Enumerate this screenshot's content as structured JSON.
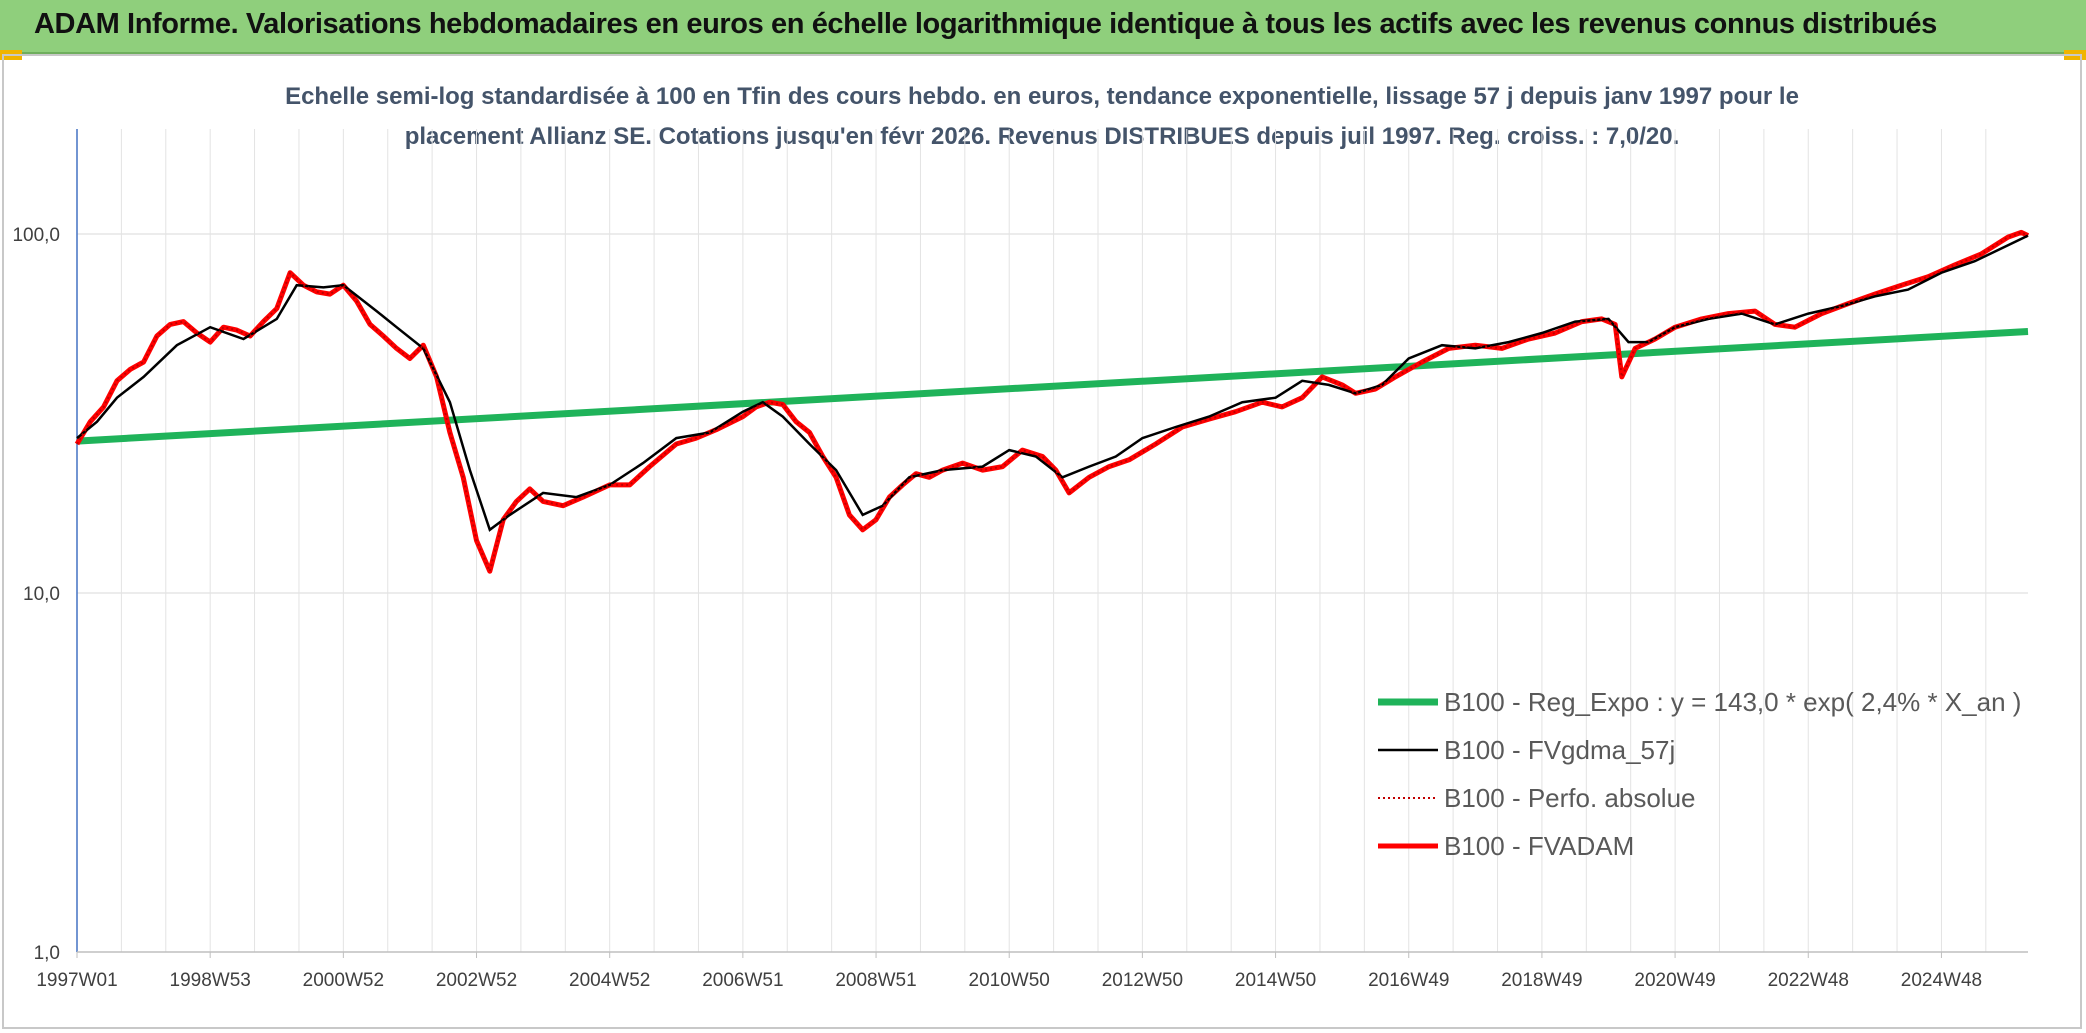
{
  "header": {
    "title": "ADAM Informe. Valorisations hebdomadaires en euros en échelle logarithmique identique à tous les actifs avec les revenus connus distribués"
  },
  "colors": {
    "header_bg": "#8fcf7c",
    "reg": "#1fb35a",
    "mma": "#000000",
    "perfo": "#c00000",
    "fvadam": "#ff0000",
    "subtitle": "#44546a"
  },
  "chart_data": {
    "type": "line",
    "subtitle_lines": [
      "Echelle semi-log standardisée à 100 en Tfin des cours hebdo. en euros, tendance exponentielle, lissage 57 j depuis janv 1997 pour le",
      "placement Allianz SE. Cotations jusqu'en févr 2026. Revenus DISTRIBUES depuis juil 1997. Reg. croiss. : 7,0/20."
    ],
    "y_scale": "log",
    "ylim": [
      1,
      200
    ],
    "y_ticks": [
      "1,0",
      "10,0",
      "100,0"
    ],
    "y_tick_values": [
      1,
      10,
      100
    ],
    "xlim": [
      1997.0,
      2026.3
    ],
    "x_ticks": [
      "1997W01",
      "1998W53",
      "2000W52",
      "2002W52",
      "2004W52",
      "2006W51",
      "2008W51",
      "2010W50",
      "2012W50",
      "2014W50",
      "2016W49",
      "2018W49",
      "2020W49",
      "2022W48",
      "2024W48"
    ],
    "x_tick_years": [
      1997.0,
      1999.0,
      2001.0,
      2003.0,
      2005.0,
      2007.0,
      2009.0,
      2011.0,
      2013.0,
      2015.0,
      2017.0,
      2019.0,
      2021.0,
      2023.0,
      2025.0
    ],
    "grid": true,
    "legend_position": "bottom-right",
    "series": [
      {
        "name": "B100 - Reg_Expo : y = 143,0 * exp( 2,4% *  X_an )",
        "key": "reg",
        "style": "solid-thick",
        "x": [
          1997.0,
          2026.3
        ],
        "y": [
          26.5,
          53.5
        ]
      },
      {
        "name": "B100 - FVgdma_57j",
        "key": "mma",
        "style": "solid-thin",
        "x": [
          1997.0,
          1997.3,
          1997.6,
          1998.0,
          1998.5,
          1999.0,
          1999.5,
          2000.0,
          2000.3,
          2000.7,
          2001.0,
          2001.5,
          2001.8,
          2002.2,
          2002.6,
          2002.9,
          2003.2,
          2003.5,
          2004.0,
          2004.5,
          2005.0,
          2005.5,
          2006.0,
          2006.5,
          2007.0,
          2007.3,
          2007.6,
          2008.0,
          2008.4,
          2008.8,
          2009.1,
          2009.5,
          2010.0,
          2010.6,
          2011.0,
          2011.4,
          2011.8,
          2012.2,
          2012.6,
          2013.0,
          2013.5,
          2014.0,
          2014.5,
          2015.0,
          2015.4,
          2015.8,
          2016.2,
          2016.6,
          2017.0,
          2017.5,
          2018.0,
          2018.5,
          2019.0,
          2019.5,
          2020.0,
          2020.3,
          2020.6,
          2021.0,
          2021.5,
          2022.0,
          2022.5,
          2023.0,
          2023.5,
          2024.0,
          2024.5,
          2025.0,
          2025.5,
          2026.0,
          2026.3
        ],
        "y": [
          27,
          30,
          35,
          40,
          49,
          55,
          51,
          58,
          72,
          71,
          72,
          61,
          55,
          48,
          34,
          22,
          15,
          16.5,
          19,
          18.5,
          20,
          23,
          27,
          28,
          32,
          34,
          31,
          26,
          22,
          16.5,
          17.5,
          21,
          22,
          22.5,
          25,
          24,
          21,
          22.5,
          24,
          27,
          29,
          31,
          34,
          35,
          39,
          38,
          36,
          38,
          45,
          49,
          48,
          50,
          53,
          57,
          58,
          50,
          50,
          55,
          58,
          60,
          56,
          60,
          63,
          67,
          70,
          78,
          84,
          93,
          99
        ]
      },
      {
        "name": "B100 - Perfo. absolue",
        "key": "perfo",
        "style": "dotted"
      },
      {
        "name": "B100 - FVADAM",
        "key": "fvadam",
        "style": "solid-thick",
        "x": [
          1997.0,
          1997.2,
          1997.4,
          1997.6,
          1997.8,
          1998.0,
          1998.2,
          1998.4,
          1998.6,
          1998.8,
          1999.0,
          1999.2,
          1999.4,
          1999.6,
          1999.8,
          2000.0,
          2000.2,
          2000.4,
          2000.6,
          2000.8,
          2001.0,
          2001.2,
          2001.4,
          2001.6,
          2001.8,
          2002.0,
          2002.2,
          2002.4,
          2002.6,
          2002.8,
          2003.0,
          2003.2,
          2003.4,
          2003.6,
          2003.8,
          2004.0,
          2004.3,
          2004.6,
          2005.0,
          2005.3,
          2005.6,
          2006.0,
          2006.3,
          2006.6,
          2007.0,
          2007.2,
          2007.4,
          2007.6,
          2007.8,
          2008.0,
          2008.2,
          2008.4,
          2008.6,
          2008.8,
          2009.0,
          2009.2,
          2009.4,
          2009.6,
          2009.8,
          2010.0,
          2010.3,
          2010.6,
          2010.9,
          2011.2,
          2011.5,
          2011.7,
          2011.9,
          2012.2,
          2012.5,
          2012.8,
          2013.2,
          2013.6,
          2014.0,
          2014.4,
          2014.8,
          2015.1,
          2015.4,
          2015.7,
          2016.0,
          2016.2,
          2016.5,
          2016.8,
          2017.2,
          2017.6,
          2018.0,
          2018.4,
          2018.8,
          2019.2,
          2019.6,
          2019.9,
          2020.1,
          2020.2,
          2020.4,
          2020.7,
          2021.0,
          2021.4,
          2021.8,
          2022.2,
          2022.5,
          2022.8,
          2023.2,
          2023.6,
          2024.0,
          2024.4,
          2024.8,
          2025.2,
          2025.6,
          2026.0,
          2026.2,
          2026.3
        ],
        "y": [
          26,
          30,
          33,
          39,
          42,
          44,
          52,
          56,
          57,
          53,
          50,
          55,
          54,
          52,
          57,
          62,
          78,
          72,
          69,
          68,
          72,
          65,
          56,
          52,
          48,
          45,
          49,
          40,
          28,
          21,
          14,
          11.5,
          16,
          18,
          19.5,
          18,
          17.5,
          18.5,
          20,
          20,
          22.5,
          26,
          27,
          28.5,
          31,
          33,
          34,
          33.5,
          30,
          28,
          24,
          21,
          16.5,
          15,
          16,
          18.5,
          20,
          21.5,
          21,
          22,
          23,
          22,
          22.5,
          25,
          24,
          22,
          19,
          21,
          22.5,
          23.5,
          26,
          29,
          30.5,
          32,
          34,
          33,
          35,
          40,
          38,
          36,
          37,
          40,
          44,
          48,
          49,
          48,
          51,
          53,
          57,
          58,
          56,
          40,
          48,
          51,
          55,
          58,
          60,
          61,
          56,
          55,
          60,
          64,
          68,
          72,
          76,
          82,
          88,
          98,
          101,
          99
        ]
      }
    ]
  }
}
